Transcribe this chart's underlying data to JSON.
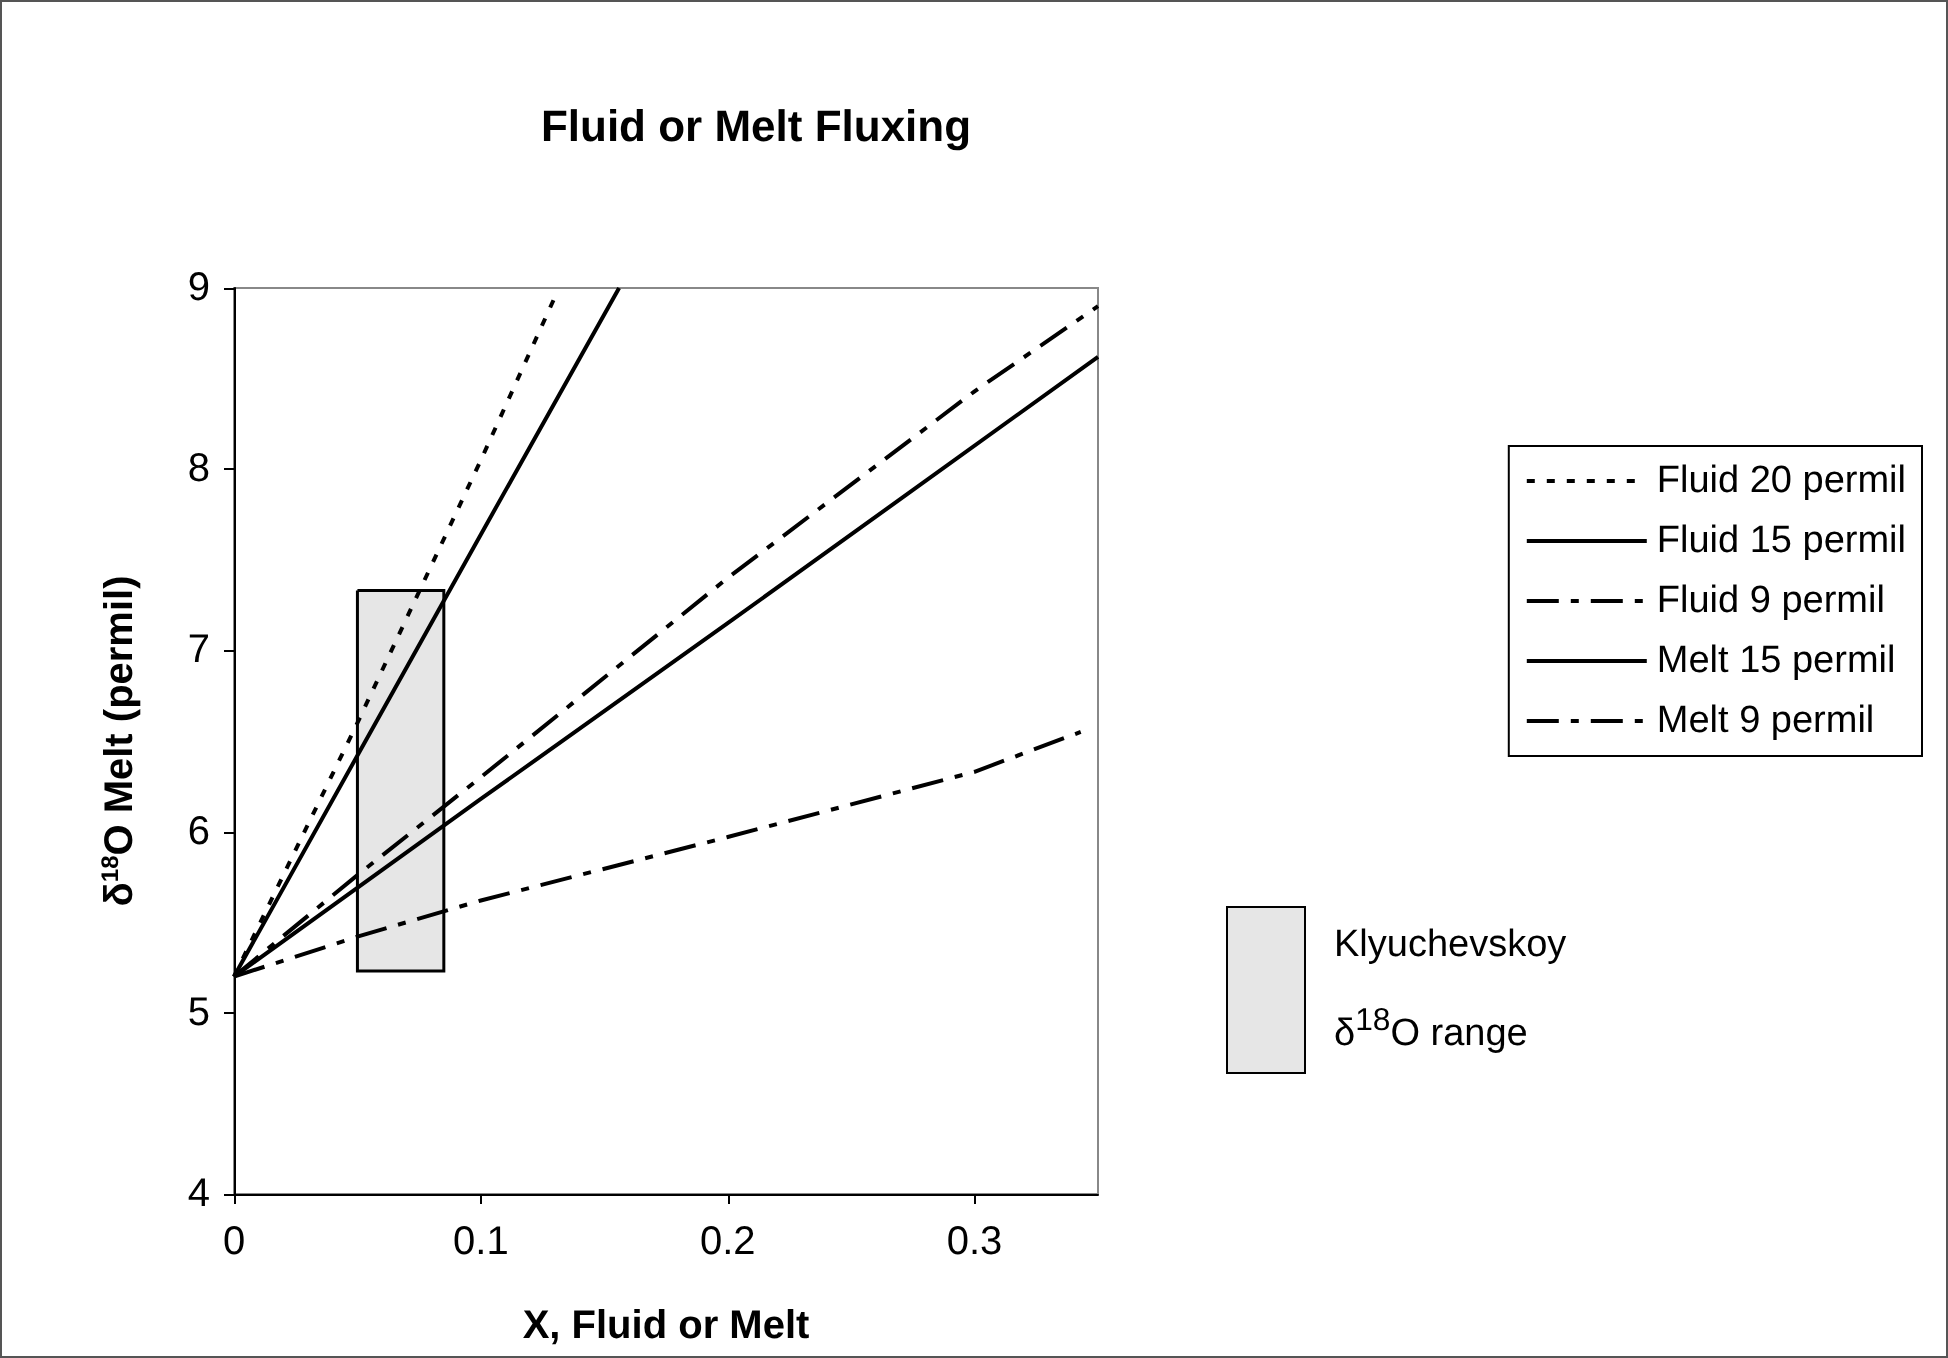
{
  "chart_data": {
    "type": "line",
    "title": "Fluid or Melt Fluxing",
    "xlabel": "X, Fluid or Melt",
    "ylabel": "δ$^{18}$O Melt (permil)",
    "xlim": [
      0,
      0.35
    ],
    "xticks": [
      0,
      0.1,
      0.2,
      0.3
    ],
    "ylim": [
      4,
      9
    ],
    "yticks": [
      4,
      5,
      6,
      7,
      8,
      9
    ],
    "grid": false,
    "legend": "right",
    "marker": "none",
    "series": [
      {
        "name": "Fluid 20 permil",
        "color": "#000000",
        "line_style": "dotted",
        "x": [
          0,
          0.05,
          0.1,
          0.13
        ],
        "values": [
          5.2,
          6.6,
          8.05,
          8.95
        ]
      },
      {
        "name": "Fluid 15 permil",
        "color": "#000000",
        "line_style": "solid",
        "x": [
          0,
          0.05,
          0.1,
          0.156
        ],
        "values": [
          5.2,
          6.42,
          7.64,
          9
        ]
      },
      {
        "name": "Fluid 9 permil",
        "color": "#000000",
        "line_style": "dashed",
        "x": [
          0,
          0.05,
          0.1,
          0.2,
          0.3,
          0.35
        ],
        "values": [
          5.2,
          5.76,
          6.3,
          7.4,
          8.43,
          8.9
        ]
      },
      {
        "name": "Melt 15 permil",
        "color": "#000000",
        "line_style": "solid",
        "x": [
          0,
          0.1,
          0.2,
          0.35
        ],
        "values": [
          5.2,
          6.18,
          7.15,
          8.62
        ]
      },
      {
        "name": "Melt 9 permil",
        "color": "#000000",
        "line_style": "dashed",
        "x": [
          0,
          0.05,
          0.1,
          0.2,
          0.3,
          0.343
        ],
        "values": [
          5.2,
          5.42,
          5.62,
          5.97,
          6.33,
          6.55
        ]
      },
      {
        "name": "Klyuchevskoy δ$^{18}$O range",
        "type": "area",
        "color": "#e6e6e6",
        "x": [
          0.05,
          0.085
        ],
        "lower": [
          5.23,
          5.23
        ],
        "upper": [
          7.33,
          7.33
        ],
        "values": [
          null,
          null
        ]
      }
    ]
  }
}
